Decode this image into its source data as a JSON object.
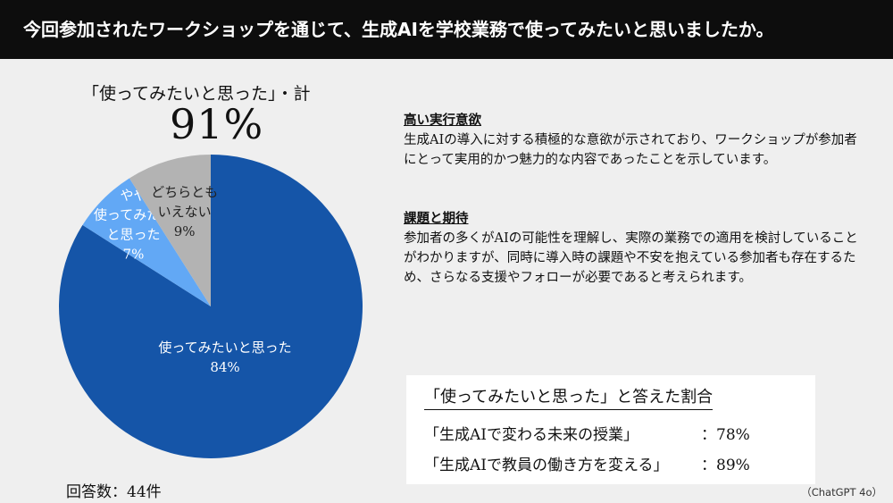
{
  "header": {
    "title": "今回参加されたワークショップを通じて、生成AIを学校業務で使ってみたいと思いましたか。"
  },
  "headline": {
    "label": "「使ってみたいと思った」・計",
    "value": "91%"
  },
  "chart_data": {
    "type": "pie",
    "slices": [
      {
        "label_lines": [
          "使ってみたいと思った"
        ],
        "pct_label": "84%",
        "value": 84,
        "color": "#1555a8"
      },
      {
        "label_lines": [
          "やや",
          "使ってみたい",
          "と思った"
        ],
        "pct_label": "7%",
        "value": 7,
        "color": "#62a8f5"
      },
      {
        "label_lines": [
          "どちらとも",
          "いえない"
        ],
        "pct_label": "9%",
        "value": 9,
        "color": "#b3b3b3"
      }
    ]
  },
  "sections": [
    {
      "heading": "高い実行意欲",
      "body": "生成AIの導入に対する積極的な意欲が示されており、ワークショップが参加者にとって実用的かつ魅力的な内容であったことを示しています。"
    },
    {
      "heading": "課題と期待",
      "body": "参加者の多くがAIの可能性を理解し、実際の業務での適用を検討していることがわかりますが、同時に導入時の課題や不安を抱えている参加者も存在するため、さらなる支援やフォローが必要であると考えられます。"
    }
  ],
  "ratio_box": {
    "title": "「使ってみたいと思った」と答えた割合",
    "rows": [
      {
        "label": "「生成AIで変わる未来の授業」",
        "value": "：78%"
      },
      {
        "label": "「生成AIで教員の働き方を変える」",
        "value": "：89%"
      }
    ]
  },
  "footer": {
    "respondents": "回答数：44件",
    "source": "（ChatGPT 4o）"
  }
}
